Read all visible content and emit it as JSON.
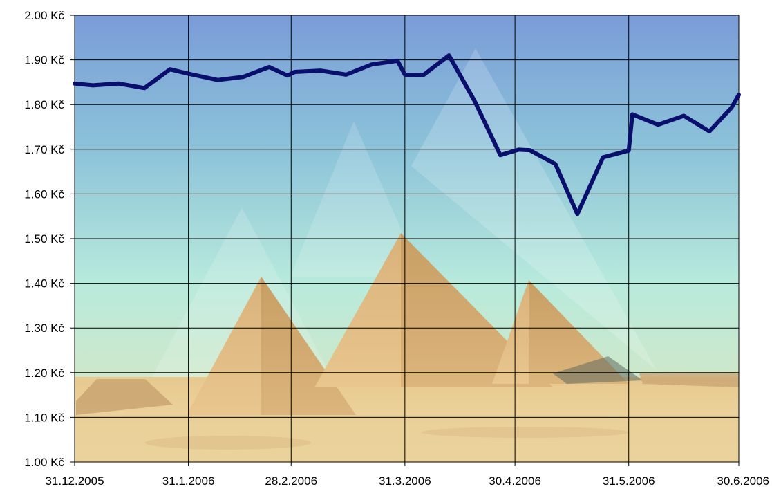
{
  "chart_data": {
    "type": "line",
    "title": "",
    "xlabel": "",
    "ylabel": "",
    "ylim": [
      1.0,
      2.0
    ],
    "ytick_values": [
      1.0,
      1.1,
      1.2,
      1.3,
      1.4,
      1.5,
      1.6,
      1.7,
      1.8,
      1.9,
      2.0
    ],
    "ytick_labels": [
      "1.00 Kč",
      "1.10 Kč",
      "1.20 Kč",
      "1.30 Kč",
      "1.40 Kč",
      "1.50 Kč",
      "1.60 Kč",
      "1.70 Kč",
      "1.80 Kč",
      "1.90 Kč",
      "2.00 Kč"
    ],
    "xlim": [
      "2005-12-31",
      "2006-06-30"
    ],
    "xtick_values": [
      "2005-12-31",
      "2006-01-31",
      "2006-02-28",
      "2006-03-31",
      "2006-04-30",
      "2006-05-31",
      "2006-06-30"
    ],
    "xtick_labels": [
      "31.12.2005",
      "31.1.2006",
      "28.2.2006",
      "31.3.2006",
      "30.4.2006",
      "31.5.2006",
      "30.6.2006"
    ],
    "grid": true,
    "background": "pyramids-of-giza-photo",
    "line_color": "#0a0f6e",
    "series": [
      {
        "x": [
          "2005-12-31",
          "2006-01-05",
          "2006-01-12",
          "2006-01-19",
          "2006-01-26",
          "2006-01-31",
          "2006-02-08",
          "2006-02-15",
          "2006-02-22",
          "2006-02-27",
          "2006-03-01",
          "2006-03-08",
          "2006-03-15",
          "2006-03-22",
          "2006-03-29",
          "2006-03-31",
          "2006-04-05",
          "2006-04-12",
          "2006-04-19",
          "2006-04-26",
          "2006-05-01",
          "2006-05-04",
          "2006-05-11",
          "2006-05-17",
          "2006-05-24",
          "2006-05-31",
          "2006-06-01",
          "2006-06-08",
          "2006-06-15",
          "2006-06-22",
          "2006-06-28",
          "2006-06-30"
        ],
        "values": [
          1.847,
          1.843,
          1.847,
          1.837,
          1.879,
          1.869,
          1.855,
          1.862,
          1.884,
          1.865,
          1.873,
          1.876,
          1.867,
          1.89,
          1.898,
          1.867,
          1.866,
          1.91,
          1.808,
          1.687,
          1.699,
          1.698,
          1.667,
          1.555,
          1.682,
          1.697,
          1.778,
          1.755,
          1.775,
          1.74,
          1.793,
          1.822
        ]
      }
    ]
  }
}
